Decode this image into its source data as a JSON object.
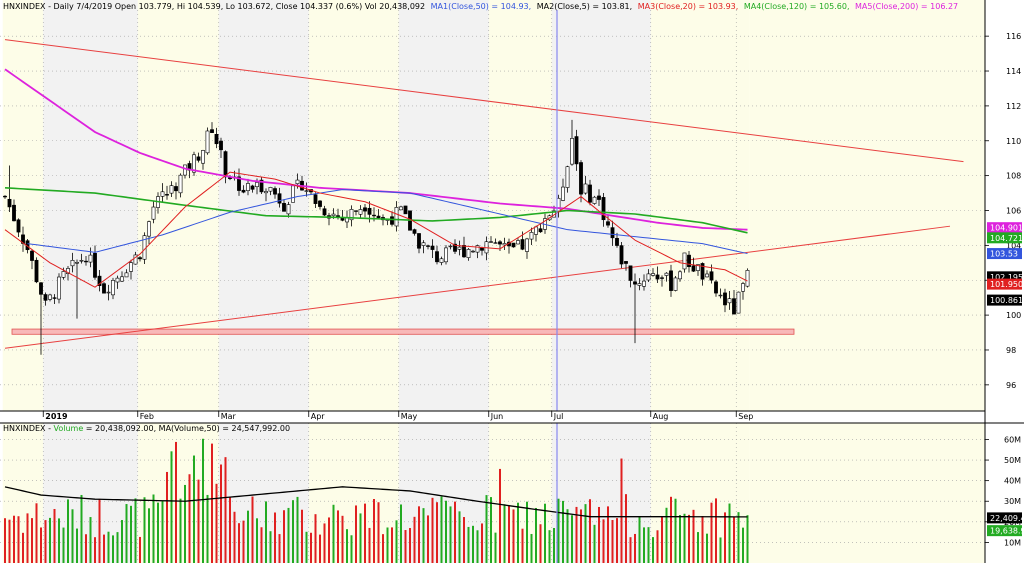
{
  "header": {
    "symbol_line": "HNXINDEX - Daily 7/4/2019 Open 103.779, Hi 104.539, Lo 103.672, Close 104.337 (0.6%) Vol 20,438,092",
    "ma1": "MA1(Close,50) = 104.93,",
    "ma2": "MA2(Close,5) = 103.81,",
    "ma3": "MA3(Close,20) = 103.93,",
    "ma4": "MA4(Close,120) = 105.60,",
    "ma5": "MA5(Close,200) = 106.27",
    "volume_prefix": "HNXINDEX - ",
    "volume_word": "Volume",
    "volume_rest": " = 20,438,092.00, MA(Volume,50) = 24,547,992.00"
  },
  "price_axis": {
    "ticks": [
      "116",
      "114",
      "112",
      "110",
      "108",
      "106",
      "104",
      "102",
      "100",
      "98",
      "96"
    ]
  },
  "volume_axis": {
    "ticks": [
      "60M",
      "50M",
      "40M",
      "30M",
      "20M",
      "10M"
    ]
  },
  "x_axis": {
    "labels": [
      "2019",
      "Feb",
      "Mar",
      "Apr",
      "May",
      "Jun",
      "Jul",
      "Aug",
      "Sep"
    ]
  },
  "badges": {
    "ma5": "104.901",
    "ma4": "104.721",
    "ma1": "103.53",
    "close": "102.195",
    "ma3": "101.950",
    "ma2": "100.861",
    "vol_ma": "22,409.42",
    "vol": "19,638.94"
  },
  "colors": {
    "background": "#ffffff",
    "band_light": "#fdfde8",
    "band_gray": "#f2f2f2",
    "grid": "#a0a0a0",
    "ma1": "#3355dd",
    "ma2": "#222222",
    "ma3": "#e02020",
    "ma4": "#22aa22",
    "ma5": "#dd22dd",
    "trend": "#e84040",
    "support_fill": "#f8b8b8",
    "cursor": "#8888ee",
    "vol_up": "#22aa22",
    "vol_down": "#e02020"
  },
  "chart_data": {
    "type": "candlestick",
    "price_range": [
      94.5,
      117.5
    ],
    "volume_range": [
      0,
      68
    ],
    "volume_unit": "M",
    "months": [
      "2019",
      "Feb",
      "Mar",
      "Apr",
      "May",
      "Jun",
      "Jul",
      "Aug",
      "Sep"
    ],
    "price_anchors": [
      [
        0,
        106.8
      ],
      [
        5,
        103.8
      ],
      [
        9,
        100.5
      ],
      [
        13,
        102.2
      ],
      [
        18,
        103.5
      ],
      [
        22,
        101.5
      ],
      [
        26,
        102.5
      ],
      [
        30,
        103.6
      ],
      [
        33,
        106.2
      ],
      [
        37,
        107.2
      ],
      [
        40,
        108.2
      ],
      [
        44,
        109.6
      ],
      [
        46,
        110.8
      ],
      [
        49,
        108.3
      ],
      [
        53,
        107.2
      ],
      [
        58,
        107.5
      ],
      [
        62,
        106.4
      ],
      [
        66,
        107.6
      ],
      [
        70,
        106.2
      ],
      [
        75,
        105.5
      ],
      [
        80,
        106.4
      ],
      [
        84,
        105.4
      ],
      [
        88,
        105.9
      ],
      [
        92,
        104.2
      ],
      [
        96,
        103.3
      ],
      [
        100,
        103.6
      ],
      [
        104,
        103.9
      ],
      [
        108,
        104.3
      ],
      [
        112,
        103.6
      ],
      [
        116,
        104.1
      ],
      [
        120,
        105.6
      ],
      [
        123,
        106.3
      ],
      [
        126,
        110.2
      ],
      [
        128,
        107.3
      ],
      [
        132,
        106.5
      ],
      [
        136,
        103.7
      ],
      [
        140,
        101.8
      ],
      [
        144,
        102.5
      ],
      [
        148,
        101.8
      ],
      [
        151,
        103.2
      ],
      [
        154,
        102.6
      ],
      [
        158,
        101.3
      ],
      [
        162,
        100.3
      ],
      [
        165,
        102.2
      ]
    ],
    "ma_anchors": {
      "ma1": [
        [
          5,
          104.1
        ],
        [
          20,
          103.6
        ],
        [
          35,
          104.6
        ],
        [
          50,
          105.9
        ],
        [
          65,
          106.8
        ],
        [
          75,
          107.2
        ],
        [
          90,
          107.0
        ],
        [
          110,
          105.8
        ],
        [
          125,
          104.9
        ],
        [
          140,
          104.5
        ],
        [
          155,
          104.1
        ],
        [
          165,
          103.53
        ]
      ],
      "ma3": [
        [
          0,
          104.9
        ],
        [
          10,
          103.0
        ],
        [
          20,
          101.6
        ],
        [
          30,
          103.5
        ],
        [
          40,
          106.2
        ],
        [
          50,
          108.2
        ],
        [
          60,
          107.8
        ],
        [
          70,
          107.0
        ],
        [
          80,
          106.5
        ],
        [
          90,
          105.5
        ],
        [
          100,
          104.0
        ],
        [
          110,
          103.8
        ],
        [
          120,
          105.4
        ],
        [
          128,
          106.8
        ],
        [
          140,
          104.3
        ],
        [
          150,
          103.0
        ],
        [
          160,
          102.6
        ],
        [
          165,
          101.95
        ]
      ],
      "ma4": [
        [
          0,
          107.3
        ],
        [
          20,
          107.0
        ],
        [
          40,
          106.3
        ],
        [
          58,
          105.7
        ],
        [
          75,
          105.6
        ],
        [
          95,
          105.4
        ],
        [
          110,
          105.6
        ],
        [
          125,
          106.0
        ],
        [
          140,
          105.8
        ],
        [
          155,
          105.3
        ],
        [
          165,
          104.72
        ]
      ],
      "ma5": [
        [
          0,
          114.1
        ],
        [
          10,
          112.3
        ],
        [
          20,
          110.5
        ],
        [
          30,
          109.3
        ],
        [
          40,
          108.4
        ],
        [
          55,
          107.7
        ],
        [
          70,
          107.3
        ],
        [
          90,
          107.0
        ],
        [
          110,
          106.4
        ],
        [
          125,
          106.1
        ],
        [
          145,
          105.3
        ],
        [
          155,
          105.0
        ],
        [
          165,
          104.9
        ]
      ],
      "vol_ma": [
        [
          0,
          37
        ],
        [
          8,
          33
        ],
        [
          20,
          31
        ],
        [
          40,
          30
        ],
        [
          55,
          33
        ],
        [
          75,
          37
        ],
        [
          90,
          35
        ],
        [
          105,
          30
        ],
        [
          118,
          26
        ],
        [
          130,
          22.5
        ],
        [
          150,
          22.5
        ],
        [
          165,
          22.4
        ]
      ]
    },
    "trendlines": [
      {
        "from": [
          0,
          115.8
        ],
        "to": [
          213,
          108.8
        ]
      },
      {
        "from": [
          0,
          98.1
        ],
        "to": [
          210,
          105.1
        ]
      }
    ],
    "support_zone": [
      98.9,
      99.2
    ]
  }
}
